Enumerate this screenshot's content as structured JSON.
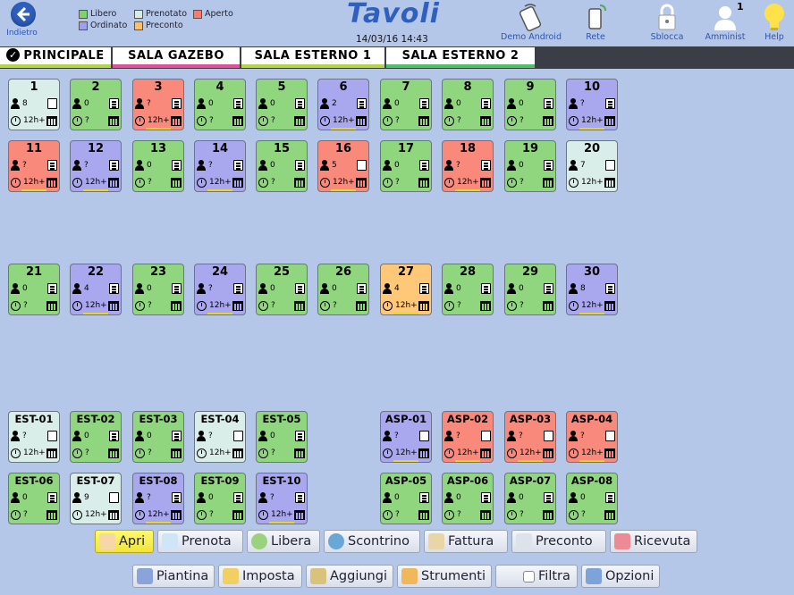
{
  "header": {
    "back_label": "Indietro",
    "title": "Tavoli",
    "datetime": "14/03/16 14:43",
    "legend": [
      {
        "label": "Libero",
        "color": "#7fd36b"
      },
      {
        "label": "Ordinato",
        "color": "#9f9ff0"
      },
      {
        "label": "Prenotato",
        "color": "#d8ece7"
      },
      {
        "label": "Preconto",
        "color": "#ffbf6a"
      },
      {
        "label": "Aperto",
        "color": "#fb7b6b"
      }
    ],
    "icons": [
      {
        "label": "Demo Android",
        "icon": "phone-tap-icon"
      },
      {
        "label": "Rete",
        "icon": "network-phone-icon"
      },
      {
        "label": "Sblocca",
        "icon": "padlock-icon"
      },
      {
        "label": "Amminist",
        "icon": "user-icon",
        "badge": "1"
      },
      {
        "label": "Help",
        "icon": "lightbulb-icon"
      }
    ]
  },
  "colors": {
    "free": "#8fd67e",
    "ordered": "#a9a7ee",
    "reserved": "#d9ede9",
    "preaccount": "#ffc778",
    "open": "#f8897b"
  },
  "tabs": [
    {
      "label": "PRINCIPALE",
      "bar": "#b6d34e",
      "active": true
    },
    {
      "label": "SALA GAZEBO",
      "bar": "#e0519b"
    },
    {
      "label": "SALA ESTERNO 1",
      "bar": "#b6d34e"
    },
    {
      "label": "SALA ESTERNO 2",
      "bar": "#50c06b"
    }
  ],
  "tables": [
    {
      "num": "1",
      "status": "reserved",
      "guests": "8",
      "time": "12h+",
      "bill": "empty",
      "strip": ""
    },
    {
      "num": "2",
      "status": "free",
      "guests": "0",
      "time": "?",
      "bill": "filled",
      "strip": ""
    },
    {
      "num": "3",
      "status": "open",
      "guests": "?",
      "time": "12h+",
      "bill": "filled",
      "strip": "#e8d531"
    },
    {
      "num": "4",
      "status": "free",
      "guests": "0",
      "time": "?",
      "bill": "filled",
      "strip": ""
    },
    {
      "num": "5",
      "status": "free",
      "guests": "0",
      "time": "?",
      "bill": "filled",
      "strip": ""
    },
    {
      "num": "6",
      "status": "ordered",
      "guests": "2",
      "time": "12h+",
      "bill": "filled",
      "strip": "#e8d531"
    },
    {
      "num": "7",
      "status": "free",
      "guests": "0",
      "time": "?",
      "bill": "filled",
      "strip": ""
    },
    {
      "num": "8",
      "status": "free",
      "guests": "0",
      "time": "?",
      "bill": "filled",
      "strip": ""
    },
    {
      "num": "9",
      "status": "free",
      "guests": "0",
      "time": "?",
      "bill": "filled",
      "strip": ""
    },
    {
      "num": "10",
      "status": "ordered",
      "guests": "?",
      "time": "12h+",
      "bill": "filled",
      "strip": "#e8d531"
    },
    {
      "num": "11",
      "status": "open",
      "guests": "?",
      "time": "12h+",
      "bill": "filled",
      "strip": "#e8d531"
    },
    {
      "num": "12",
      "status": "ordered",
      "guests": "?",
      "time": "12h+",
      "bill": "filled",
      "strip": "#e8d531"
    },
    {
      "num": "13",
      "status": "free",
      "guests": "0",
      "time": "?",
      "bill": "filled",
      "strip": ""
    },
    {
      "num": "14",
      "status": "ordered",
      "guests": "?",
      "time": "12h+",
      "bill": "filled",
      "strip": "#e8d531"
    },
    {
      "num": "15",
      "status": "free",
      "guests": "0",
      "time": "?",
      "bill": "filled",
      "strip": ""
    },
    {
      "num": "16",
      "status": "open",
      "guests": "5",
      "time": "12h+",
      "bill": "empty",
      "strip": "#e8d531"
    },
    {
      "num": "17",
      "status": "free",
      "guests": "0",
      "time": "?",
      "bill": "filled",
      "strip": ""
    },
    {
      "num": "18",
      "status": "open",
      "guests": "?",
      "time": "12h+",
      "bill": "filled",
      "strip": "#e8d531"
    },
    {
      "num": "19",
      "status": "free",
      "guests": "0",
      "time": "?",
      "bill": "filled",
      "strip": ""
    },
    {
      "num": "20",
      "status": "reserved",
      "guests": "7",
      "time": "12h+",
      "bill": "empty",
      "strip": ""
    },
    {
      "num": "21",
      "status": "free",
      "guests": "0",
      "time": "?",
      "bill": "filled",
      "strip": ""
    },
    {
      "num": "22",
      "status": "ordered",
      "guests": "4",
      "time": "12h+",
      "bill": "filled",
      "strip": "#e8d531"
    },
    {
      "num": "23",
      "status": "free",
      "guests": "0",
      "time": "?",
      "bill": "filled",
      "strip": ""
    },
    {
      "num": "24",
      "status": "ordered",
      "guests": "?",
      "time": "12h+",
      "bill": "filled",
      "strip": "#e8d531"
    },
    {
      "num": "25",
      "status": "free",
      "guests": "0",
      "time": "?",
      "bill": "filled",
      "strip": ""
    },
    {
      "num": "26",
      "status": "free",
      "guests": "0",
      "time": "?",
      "bill": "filled",
      "strip": ""
    },
    {
      "num": "27",
      "status": "preaccount",
      "guests": "4",
      "time": "12h+",
      "bill": "filled",
      "strip": "#e8d531"
    },
    {
      "num": "28",
      "status": "free",
      "guests": "0",
      "time": "?",
      "bill": "filled",
      "strip": ""
    },
    {
      "num": "29",
      "status": "free",
      "guests": "0",
      "time": "?",
      "bill": "filled",
      "strip": ""
    },
    {
      "num": "30",
      "status": "ordered",
      "guests": "8",
      "time": "12h+",
      "bill": "filled",
      "strip": "#e8d531"
    },
    {
      "num": "EST-01",
      "status": "reserved",
      "guests": "?",
      "time": "12h+",
      "bill": "empty",
      "strip": ""
    },
    {
      "num": "EST-02",
      "status": "free",
      "guests": "0",
      "time": "?",
      "bill": "filled",
      "strip": ""
    },
    {
      "num": "EST-03",
      "status": "free",
      "guests": "0",
      "time": "?",
      "bill": "filled",
      "strip": ""
    },
    {
      "num": "EST-04",
      "status": "reserved",
      "guests": "?",
      "time": "12h+",
      "bill": "empty",
      "strip": ""
    },
    {
      "num": "EST-05",
      "status": "free",
      "guests": "0",
      "time": "?",
      "bill": "filled",
      "strip": ""
    },
    {
      "num": "ASP-01",
      "status": "ordered",
      "guests": "?",
      "time": "12h+",
      "bill": "empty",
      "strip": "#e8d531"
    },
    {
      "num": "ASP-02",
      "status": "open",
      "guests": "?",
      "time": "12h+",
      "bill": "empty",
      "strip": "#e8d531"
    },
    {
      "num": "ASP-03",
      "status": "open",
      "guests": "?",
      "time": "12h+",
      "bill": "empty",
      "strip": "#e8d531"
    },
    {
      "num": "ASP-04",
      "status": "open",
      "guests": "?",
      "time": "12h+",
      "bill": "empty",
      "strip": "#e8d531"
    },
    {
      "num": "EST-06",
      "status": "free",
      "guests": "0",
      "time": "?",
      "bill": "filled",
      "strip": ""
    },
    {
      "num": "EST-07",
      "status": "reserved",
      "guests": "9",
      "time": "12h+",
      "bill": "empty",
      "strip": ""
    },
    {
      "num": "EST-08",
      "status": "ordered",
      "guests": "?",
      "time": "12h+",
      "bill": "filled",
      "strip": "#e8d531"
    },
    {
      "num": "EST-09",
      "status": "free",
      "guests": "0",
      "time": "?",
      "bill": "filled",
      "strip": ""
    },
    {
      "num": "EST-10",
      "status": "ordered",
      "guests": "?",
      "time": "12h+",
      "bill": "filled",
      "strip": "#e8d531"
    },
    {
      "num": "ASP-05",
      "status": "free",
      "guests": "0",
      "time": "?",
      "bill": "filled",
      "strip": ""
    },
    {
      "num": "ASP-06",
      "status": "free",
      "guests": "0",
      "time": "?",
      "bill": "filled",
      "strip": ""
    },
    {
      "num": "ASP-07",
      "status": "free",
      "guests": "0",
      "time": "?",
      "bill": "filled",
      "strip": ""
    },
    {
      "num": "ASP-08",
      "status": "free",
      "guests": "0",
      "time": "?",
      "bill": "filled",
      "strip": ""
    }
  ],
  "toolbar": {
    "row1": [
      {
        "label": "Apri",
        "icon": "hand-icon",
        "active": true
      },
      {
        "label": "Prenota",
        "icon": "hand-pointer-icon"
      },
      {
        "label": "Libera",
        "icon": "radio-circle-icon"
      },
      {
        "label": "Scontrino",
        "icon": "play-circle-icon"
      },
      {
        "label": "Fattura",
        "icon": "invoice-pen-icon"
      },
      {
        "label": "Preconto",
        "icon": "clipboard-pen-icon"
      },
      {
        "label": "Ricevuta",
        "icon": "receipt-heart-icon"
      }
    ],
    "row2": [
      {
        "label": "Piantina",
        "icon": "floorplan-icon"
      },
      {
        "label": "Imposta",
        "icon": "folder-icon"
      },
      {
        "label": "Aggiungi",
        "icon": "add-tables-icon"
      },
      {
        "label": "Strumenti",
        "icon": "tools-icon"
      },
      {
        "label": "Filtra",
        "icon": "checkbox-icon"
      },
      {
        "label": "Opzioni",
        "icon": "options-icon"
      }
    ]
  }
}
